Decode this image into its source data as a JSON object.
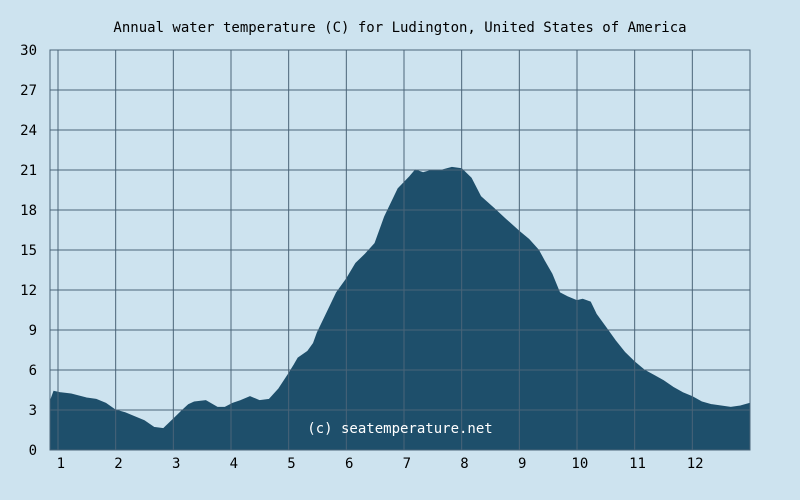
{
  "chart_data": {
    "type": "area",
    "title": "Annual water temperature (C) for Ludington, United States of America",
    "watermark": "(c) seatemperature.net",
    "xlabel": "",
    "ylabel": "",
    "x_ticks": [
      "1",
      "2",
      "3",
      "4",
      "5",
      "6",
      "7",
      "8",
      "9",
      "10",
      "11",
      "12"
    ],
    "y_ticks": [
      "0",
      "3",
      "6",
      "9",
      "12",
      "15",
      "18",
      "21",
      "24",
      "27",
      "30"
    ],
    "ylim": [
      0,
      30
    ],
    "xlim": [
      1,
      365
    ],
    "grid": true,
    "colors": {
      "background": "#cde3ef",
      "fill": "#1e4f6b",
      "grid": "#4a6478",
      "text": "#000000",
      "watermark": "#ffffff"
    },
    "series": [
      {
        "x": [
          1,
          3,
          6,
          12,
          20,
          25,
          30,
          35,
          40,
          45,
          50,
          55,
          60,
          65,
          70,
          73,
          76,
          82,
          88,
          92,
          96,
          100,
          105,
          110,
          115,
          120,
          125,
          128,
          130,
          135,
          138,
          140,
          145,
          150,
          152,
          155,
          160,
          165,
          170,
          175,
          180,
          182,
          188,
          191,
          195,
          200,
          205,
          210,
          215,
          220,
          225,
          232,
          238,
          245,
          250,
          255,
          258,
          262,
          266,
          270,
          275,
          278,
          282,
          285,
          290,
          295,
          300,
          305,
          310,
          315,
          320,
          325,
          330,
          335,
          340,
          345,
          350,
          355,
          360,
          365
        ],
        "y": [
          3.6,
          4.4,
          4.3,
          4.2,
          3.9,
          3.8,
          3.5,
          3.0,
          2.8,
          2.5,
          2.2,
          1.7,
          1.6,
          2.3,
          3.0,
          3.4,
          3.6,
          3.7,
          3.2,
          3.2,
          3.5,
          3.7,
          4.0,
          3.7,
          3.8,
          4.6,
          5.7,
          6.4,
          6.9,
          7.4,
          8.0,
          8.8,
          10.3,
          11.8,
          12.2,
          12.8,
          14.0,
          14.7,
          15.5,
          17.5,
          19.0,
          19.6,
          20.5,
          21.0,
          20.8,
          21.0,
          21.0,
          21.2,
          21.1,
          20.4,
          19.0,
          18.1,
          17.3,
          16.4,
          15.8,
          15.0,
          14.2,
          13.2,
          11.8,
          11.5,
          11.2,
          11.3,
          11.1,
          10.2,
          9.2,
          8.2,
          7.3,
          6.6,
          6.0,
          5.6,
          5.2,
          4.7,
          4.3,
          4.0,
          3.6,
          3.4,
          3.3,
          3.2,
          3.3,
          3.5
        ]
      }
    ]
  }
}
